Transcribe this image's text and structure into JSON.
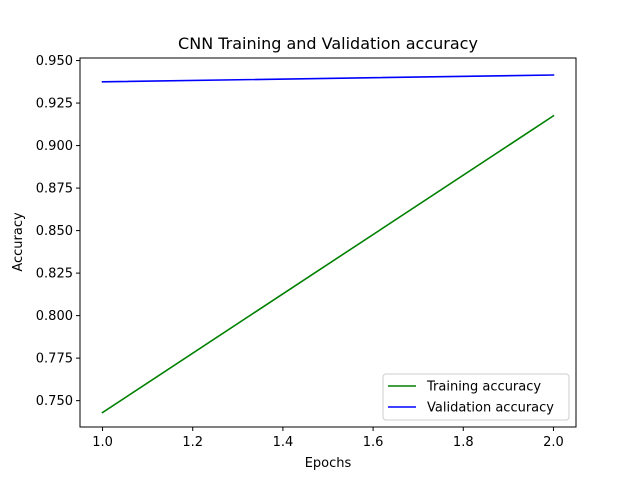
{
  "chart_data": {
    "type": "line",
    "title": "CNN Training and Validation accuracy",
    "xlabel": "Epochs",
    "ylabel": "Accuracy",
    "xlim": [
      0.95,
      2.05
    ],
    "ylim": [
      0.7345,
      0.9515
    ],
    "xticks": [
      1.0,
      1.2,
      1.4,
      1.6,
      1.8,
      2.0
    ],
    "xtick_labels": [
      "1.0",
      "1.2",
      "1.4",
      "1.6",
      "1.8",
      "2.0"
    ],
    "yticks": [
      0.75,
      0.775,
      0.8,
      0.825,
      0.85,
      0.875,
      0.9,
      0.925,
      0.95
    ],
    "ytick_labels": [
      "0.750",
      "0.775",
      "0.800",
      "0.825",
      "0.850",
      "0.875",
      "0.900",
      "0.925",
      "0.950"
    ],
    "grid": false,
    "legend_position": "lower-right",
    "x": [
      1,
      2
    ],
    "series": [
      {
        "name": "Training accuracy",
        "values": [
          0.743,
          0.9175
        ],
        "color": "#008000"
      },
      {
        "name": "Validation accuracy",
        "values": [
          0.9375,
          0.9415
        ],
        "color": "#0000ff"
      }
    ]
  }
}
